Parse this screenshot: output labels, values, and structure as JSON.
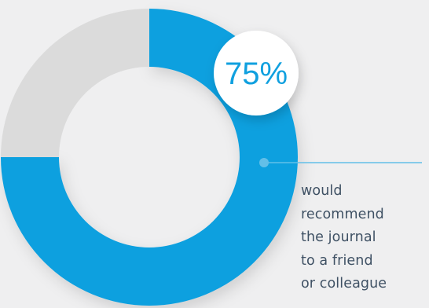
{
  "chart_data": {
    "type": "pie",
    "variant": "donut",
    "value_label": "75%",
    "slices": [
      {
        "value": 75,
        "color": "#10a0df"
      },
      {
        "value": 25,
        "color": "#dbdbdb"
      }
    ]
  },
  "caption": {
    "lines": [
      "would",
      "recommend",
      "the journal",
      "to a friend",
      "or colleague"
    ]
  },
  "colors": {
    "background": "#efeff0",
    "accent": "#10a0df",
    "remainder": "#dbdbdb",
    "badge_background": "#ffffff",
    "badge_text": "#10a0df",
    "caption_text": "#3f5164",
    "leader_line": "#62bfe8"
  }
}
